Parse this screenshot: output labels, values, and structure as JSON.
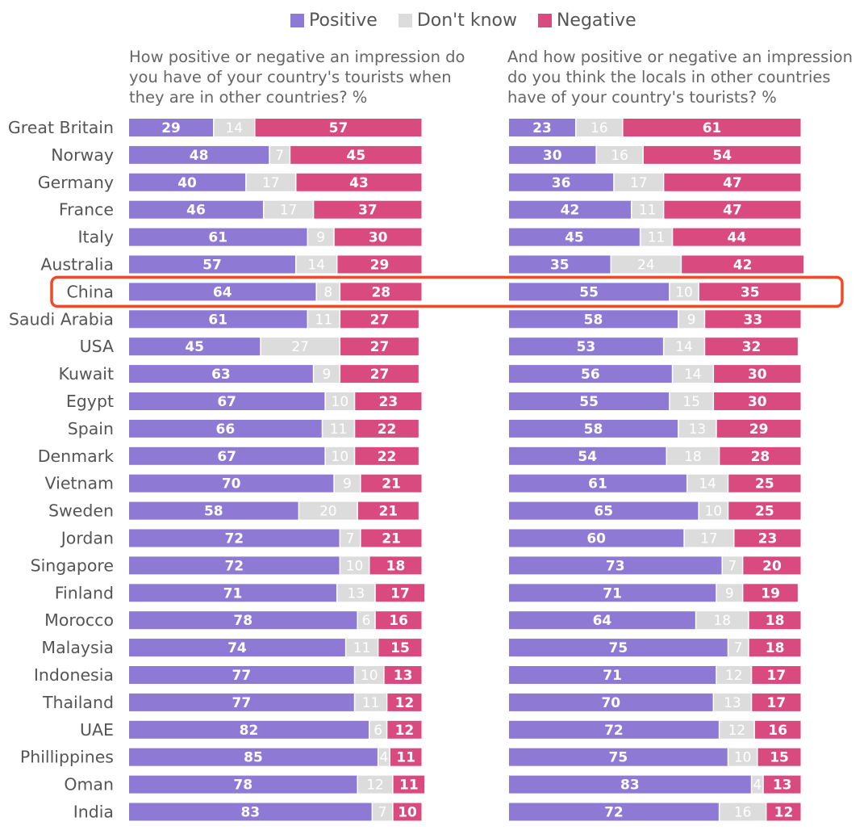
{
  "legend": [
    {
      "label": "Positive",
      "color": "#8e79d5"
    },
    {
      "label": "Don't know",
      "color": "#dcdcdc"
    },
    {
      "label": "Negative",
      "color": "#d94a7f"
    }
  ],
  "highlight": {
    "country": "China",
    "color": "#ef4a2a"
  },
  "chart_data": [
    {
      "type": "bar",
      "stacked": "horizontal-100",
      "title": "How positive or negative an impression do you have of your country's tourists when they are in other countries? %",
      "categories": [
        "Great Britain",
        "Norway",
        "Germany",
        "France",
        "Italy",
        "Australia",
        "China",
        "Saudi Arabia",
        "USA",
        "Kuwait",
        "Egypt",
        "Spain",
        "Denmark",
        "Vietnam",
        "Sweden",
        "Jordan",
        "Singapore",
        "Finland",
        "Morocco",
        "Malaysia",
        "Indonesia",
        "Thailand",
        "UAE",
        "Phillippines",
        "Oman",
        "India"
      ],
      "series": [
        {
          "name": "Positive",
          "values": [
            29,
            48,
            40,
            46,
            61,
            57,
            64,
            61,
            45,
            63,
            67,
            66,
            67,
            70,
            58,
            72,
            72,
            71,
            78,
            74,
            77,
            77,
            82,
            85,
            78,
            83
          ]
        },
        {
          "name": "Don't know",
          "values": [
            14,
            7,
            17,
            17,
            9,
            14,
            8,
            11,
            27,
            9,
            10,
            11,
            10,
            9,
            20,
            7,
            10,
            13,
            6,
            11,
            10,
            11,
            6,
            4,
            12,
            7
          ]
        },
        {
          "name": "Negative",
          "values": [
            57,
            45,
            43,
            37,
            30,
            29,
            28,
            27,
            27,
            27,
            23,
            22,
            22,
            21,
            21,
            21,
            18,
            17,
            16,
            15,
            13,
            12,
            12,
            11,
            11,
            10
          ]
        }
      ]
    },
    {
      "type": "bar",
      "stacked": "horizontal-100",
      "title": "And how positive or negative an impression do you think the locals in other countries have of your country's tourists? %",
      "categories": [
        "Great Britain",
        "Norway",
        "Germany",
        "France",
        "Italy",
        "Australia",
        "China",
        "Saudi Arabia",
        "USA",
        "Kuwait",
        "Egypt",
        "Spain",
        "Denmark",
        "Vietnam",
        "Sweden",
        "Jordan",
        "Singapore",
        "Finland",
        "Morocco",
        "Malaysia",
        "Indonesia",
        "Thailand",
        "UAE",
        "Phillippines",
        "Oman",
        "India"
      ],
      "series": [
        {
          "name": "Positive",
          "values": [
            23,
            30,
            36,
            42,
            45,
            35,
            55,
            58,
            53,
            56,
            55,
            58,
            54,
            61,
            65,
            60,
            73,
            71,
            64,
            75,
            71,
            70,
            72,
            75,
            83,
            72
          ]
        },
        {
          "name": "Don't know",
          "values": [
            16,
            16,
            17,
            11,
            11,
            24,
            10,
            9,
            14,
            14,
            15,
            13,
            18,
            14,
            10,
            17,
            7,
            9,
            18,
            7,
            12,
            13,
            12,
            10,
            4,
            16
          ]
        },
        {
          "name": "Negative",
          "values": [
            61,
            54,
            47,
            47,
            44,
            42,
            35,
            33,
            32,
            30,
            30,
            29,
            28,
            25,
            25,
            23,
            20,
            19,
            18,
            18,
            17,
            17,
            16,
            15,
            13,
            12
          ]
        }
      ]
    }
  ]
}
